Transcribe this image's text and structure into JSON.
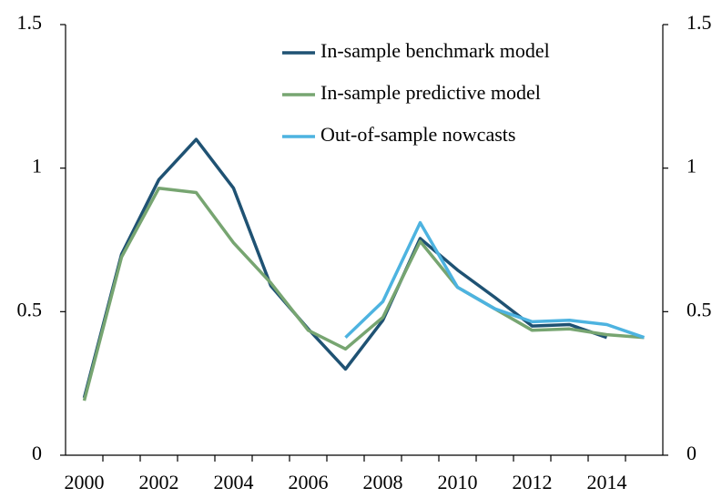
{
  "chart_data": {
    "type": "line",
    "categories": [
      "2000",
      null,
      "2002",
      null,
      "2004",
      null,
      "2006",
      null,
      "2008",
      null,
      "2010",
      null,
      "2012",
      null,
      "2014",
      null
    ],
    "series": [
      {
        "name": "In-sample benchmark model",
        "color": "#1f5273",
        "values": [
          0.2,
          0.7,
          0.96,
          1.1,
          0.93,
          0.59,
          0.44,
          0.3,
          0.47,
          0.755,
          0.645,
          0.55,
          0.45,
          0.455,
          0.41,
          null
        ]
      },
      {
        "name": "In-sample predictive model",
        "color": "#77a571",
        "values": [
          0.19,
          0.69,
          0.93,
          0.915,
          0.74,
          0.6,
          0.435,
          0.37,
          0.48,
          0.745,
          0.585,
          0.51,
          0.435,
          0.44,
          0.42,
          0.41
        ]
      },
      {
        "name": "Out-of-sample nowcasts",
        "color": "#4db3e0",
        "values": [
          null,
          null,
          null,
          null,
          null,
          null,
          null,
          0.41,
          0.535,
          0.81,
          0.585,
          0.51,
          0.465,
          0.47,
          0.455,
          0.41
        ]
      }
    ],
    "ylim": [
      0,
      1.5
    ],
    "yticks": [
      0,
      0.5,
      1,
      1.5
    ],
    "y2lim": [
      0,
      1.5
    ],
    "y2ticks": [
      0,
      0.5,
      1,
      1.5
    ],
    "grid": false,
    "legend": "top"
  }
}
